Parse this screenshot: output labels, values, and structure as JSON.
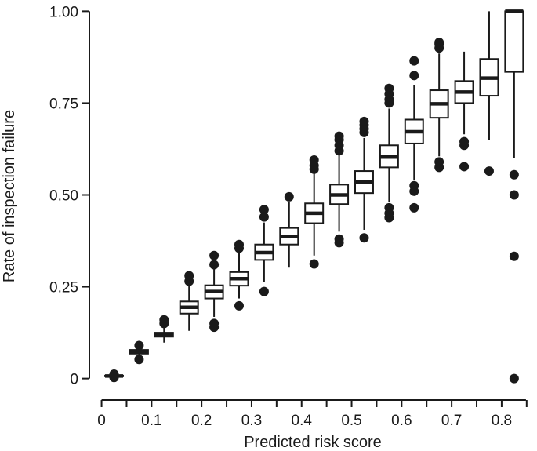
{
  "chart_data": {
    "type": "box",
    "xlabel": "Predicted risk score",
    "ylabel": "Rate of inspection failure",
    "xlim": [
      -0.015,
      0.855
    ],
    "ylim": [
      -0.02,
      1.02
    ],
    "x_ticks": [
      0,
      0.1,
      0.2,
      0.3,
      0.4,
      0.5,
      0.6,
      0.7,
      0.8
    ],
    "x_tick_labels": [
      "0",
      "0.1",
      "0.2",
      "0.3",
      "0.4",
      "0.5",
      "0.6",
      "0.7",
      "0.8"
    ],
    "y_ticks": [
      0,
      0.25,
      0.5,
      0.75,
      1.0
    ],
    "y_tick_labels": [
      "0",
      "0.25",
      "0.50",
      "0.75",
      "1.00"
    ],
    "grid": false,
    "legend": "none",
    "box_width": 0.036,
    "colors": {
      "line": "#1a1a1a",
      "box_fill": "#ffffff",
      "outlier": "#1a1a1a"
    },
    "boxes": [
      {
        "x": 0.025,
        "lower_whisker": 0.004,
        "q1": 0.006,
        "median": 0.007,
        "q3": 0.008,
        "upper_whisker": 0.01,
        "outliers": [
          0.003,
          0.012
        ]
      },
      {
        "x": 0.075,
        "lower_whisker": 0.06,
        "q1": 0.068,
        "median": 0.073,
        "q3": 0.078,
        "upper_whisker": 0.084,
        "outliers": [
          0.052,
          0.09
        ]
      },
      {
        "x": 0.125,
        "lower_whisker": 0.098,
        "q1": 0.114,
        "median": 0.119,
        "q3": 0.125,
        "upper_whisker": 0.14,
        "outliers": [
          0.15,
          0.16
        ]
      },
      {
        "x": 0.175,
        "lower_whisker": 0.13,
        "q1": 0.177,
        "median": 0.194,
        "q3": 0.21,
        "upper_whisker": 0.255,
        "outliers": [
          0.265,
          0.28
        ]
      },
      {
        "x": 0.225,
        "lower_whisker": 0.168,
        "q1": 0.218,
        "median": 0.237,
        "q3": 0.254,
        "upper_whisker": 0.3,
        "outliers": [
          0.14,
          0.15,
          0.31,
          0.335
        ]
      },
      {
        "x": 0.275,
        "lower_whisker": 0.218,
        "q1": 0.253,
        "median": 0.272,
        "q3": 0.29,
        "upper_whisker": 0.343,
        "outliers": [
          0.198,
          0.355,
          0.365
        ]
      },
      {
        "x": 0.325,
        "lower_whisker": 0.262,
        "q1": 0.323,
        "median": 0.343,
        "q3": 0.365,
        "upper_whisker": 0.425,
        "outliers": [
          0.237,
          0.44,
          0.46
        ]
      },
      {
        "x": 0.375,
        "lower_whisker": 0.302,
        "q1": 0.365,
        "median": 0.387,
        "q3": 0.41,
        "upper_whisker": 0.48,
        "outliers": [
          0.495
        ]
      },
      {
        "x": 0.425,
        "lower_whisker": 0.335,
        "q1": 0.423,
        "median": 0.45,
        "q3": 0.477,
        "upper_whisker": 0.565,
        "outliers": [
          0.312,
          0.57,
          0.58,
          0.595
        ]
      },
      {
        "x": 0.475,
        "lower_whisker": 0.4,
        "q1": 0.475,
        "median": 0.5,
        "q3": 0.528,
        "upper_whisker": 0.61,
        "outliers": [
          0.37,
          0.38,
          0.62,
          0.635,
          0.65,
          0.66
        ]
      },
      {
        "x": 0.525,
        "lower_whisker": 0.405,
        "q1": 0.505,
        "median": 0.535,
        "q3": 0.565,
        "upper_whisker": 0.655,
        "outliers": [
          0.383,
          0.67,
          0.68,
          0.69,
          0.7
        ]
      },
      {
        "x": 0.575,
        "lower_whisker": 0.48,
        "q1": 0.575,
        "median": 0.603,
        "q3": 0.635,
        "upper_whisker": 0.735,
        "outliers": [
          0.438,
          0.45,
          0.465,
          0.75,
          0.76,
          0.775,
          0.79
        ]
      },
      {
        "x": 0.625,
        "lower_whisker": 0.54,
        "q1": 0.64,
        "median": 0.672,
        "q3": 0.705,
        "upper_whisker": 0.8,
        "outliers": [
          0.465,
          0.51,
          0.525,
          0.825,
          0.865
        ]
      },
      {
        "x": 0.675,
        "lower_whisker": 0.605,
        "q1": 0.71,
        "median": 0.748,
        "q3": 0.785,
        "upper_whisker": 0.885,
        "outliers": [
          0.575,
          0.59,
          0.9,
          0.91,
          0.915
        ]
      },
      {
        "x": 0.725,
        "lower_whisker": 0.665,
        "q1": 0.75,
        "median": 0.78,
        "q3": 0.81,
        "upper_whisker": 0.89,
        "outliers": [
          0.577,
          0.635,
          0.645
        ]
      },
      {
        "x": 0.775,
        "lower_whisker": 0.65,
        "q1": 0.77,
        "median": 0.818,
        "q3": 0.87,
        "upper_whisker": 1.0,
        "outliers": [
          0.565
        ]
      },
      {
        "x": 0.825,
        "lower_whisker": 0.6,
        "q1": 0.835,
        "median": 1.0,
        "q3": 1.0,
        "upper_whisker": 1.0,
        "outliers": [
          0.0,
          0.333,
          0.5,
          0.555
        ]
      }
    ]
  }
}
